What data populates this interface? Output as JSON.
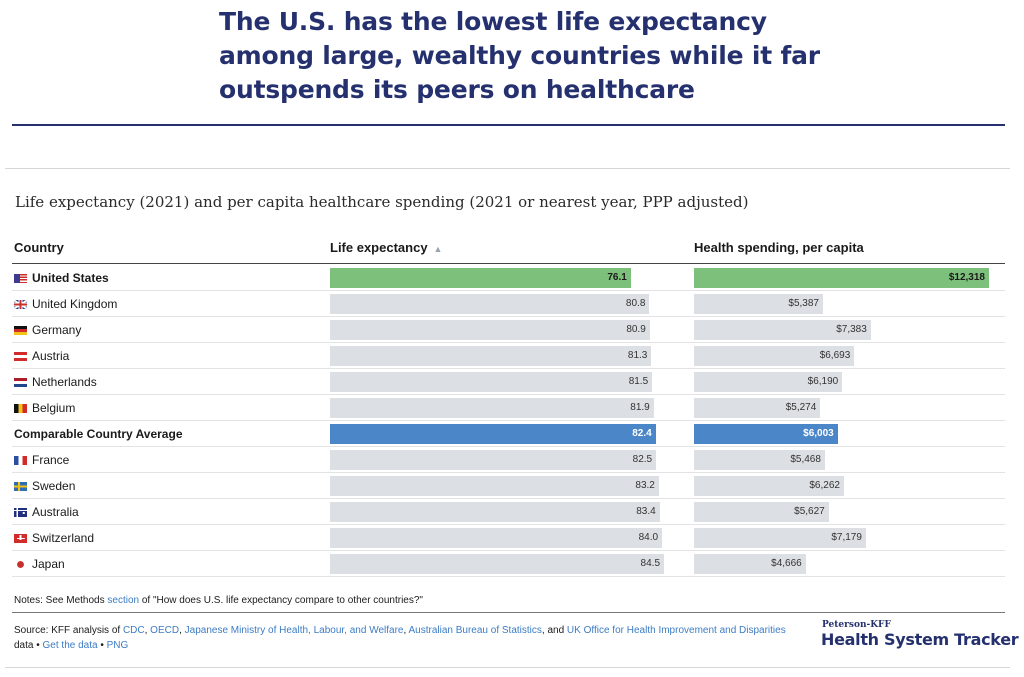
{
  "headline": "The U.S. has the lowest life expectancy among large, wealthy countries while it far outspends its peers on healthcare",
  "chart_data": {
    "type": "bar",
    "title": "Life expectancy (2021) and per capita healthcare spending (2021 or nearest year, PPP adjusted)",
    "columns": {
      "country": "Country",
      "life_expectancy": "Life expectancy",
      "spending": "Health spending, per capita"
    },
    "sort_indicator": "▲",
    "life_expectancy_range": [
      0,
      85
    ],
    "spending_range": [
      0,
      12318
    ],
    "rows": [
      {
        "country": "United States",
        "flag": "us",
        "highlight": "us",
        "life_expectancy": 76.1,
        "life_label": "76.1",
        "spending": 12318,
        "spending_label": "$12,318"
      },
      {
        "country": "United Kingdom",
        "flag": "uk",
        "highlight": "",
        "life_expectancy": 80.8,
        "life_label": "80.8",
        "spending": 5387,
        "spending_label": "$5,387"
      },
      {
        "country": "Germany",
        "flag": "de",
        "highlight": "",
        "life_expectancy": 80.9,
        "life_label": "80.9",
        "spending": 7383,
        "spending_label": "$7,383"
      },
      {
        "country": "Austria",
        "flag": "at",
        "highlight": "",
        "life_expectancy": 81.3,
        "life_label": "81.3",
        "spending": 6693,
        "spending_label": "$6,693"
      },
      {
        "country": "Netherlands",
        "flag": "nl",
        "highlight": "",
        "life_expectancy": 81.5,
        "life_label": "81.5",
        "spending": 6190,
        "spending_label": "$6,190"
      },
      {
        "country": "Belgium",
        "flag": "be",
        "highlight": "",
        "life_expectancy": 81.9,
        "life_label": "81.9",
        "spending": 5274,
        "spending_label": "$5,274"
      },
      {
        "country": "Comparable Country Average",
        "flag": "",
        "highlight": "avg",
        "life_expectancy": 82.4,
        "life_label": "82.4",
        "spending": 6003,
        "spending_label": "$6,003"
      },
      {
        "country": "France",
        "flag": "fr",
        "highlight": "",
        "life_expectancy": 82.5,
        "life_label": "82.5",
        "spending": 5468,
        "spending_label": "$5,468"
      },
      {
        "country": "Sweden",
        "flag": "se",
        "highlight": "",
        "life_expectancy": 83.2,
        "life_label": "83.2",
        "spending": 6262,
        "spending_label": "$6,262"
      },
      {
        "country": "Australia",
        "flag": "au",
        "highlight": "",
        "life_expectancy": 83.4,
        "life_label": "83.4",
        "spending": 5627,
        "spending_label": "$5,627"
      },
      {
        "country": "Switzerland",
        "flag": "ch",
        "highlight": "",
        "life_expectancy": 84.0,
        "life_label": "84.0",
        "spending": 7179,
        "spending_label": "$7,179"
      },
      {
        "country": "Japan",
        "flag": "jp",
        "highlight": "",
        "life_expectancy": 84.5,
        "life_label": "84.5",
        "spending": 4666,
        "spending_label": "$4,666"
      }
    ],
    "colors": {
      "us": "#7cc07b",
      "average": "#4a86c8",
      "other": "#dcdfe3"
    }
  },
  "notes": {
    "prefix": "Notes: See Methods ",
    "link": "section",
    "suffix": " of \"How does U.S. life expectancy compare to other countries?\""
  },
  "source": {
    "prefix": "Source: KFF analysis of ",
    "links": [
      "CDC",
      "OECD",
      "Japanese Ministry of Health, Labour, and Welfare",
      "Australian Bureau of Statistics",
      "UK Office for Health Improvement and Disparities"
    ],
    "data_text": " data • ",
    "get_data": "Get the data",
    "bullet": " • ",
    "png": "PNG"
  },
  "brand": {
    "small": "Peterson-KFF",
    "big": "Health System Tracker"
  }
}
